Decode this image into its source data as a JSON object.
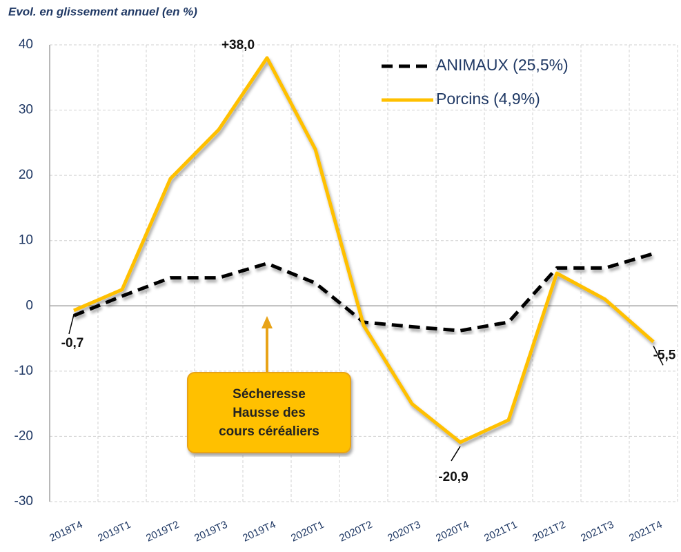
{
  "chart_data": {
    "type": "line",
    "subtitle": "Evol. en glissement annuel (en %)",
    "categories": [
      "2018T4",
      "2019T1",
      "2019T2",
      "2019T3",
      "2019T4",
      "2020T1",
      "2020T2",
      "2020T3",
      "2020T4",
      "2021T1",
      "2021T2",
      "2021T3",
      "2021T4"
    ],
    "series": [
      {
        "name": "ANIMAUX (25,5%)",
        "color": "#000000",
        "dash": true,
        "values": [
          -1.5,
          1.5,
          4.3,
          4.3,
          6.5,
          3.5,
          -2.5,
          -3.2,
          -3.8,
          -2.5,
          5.8,
          5.8,
          8.0
        ]
      },
      {
        "name": "Porcins (4,9%)",
        "color": "#FFC000",
        "dash": false,
        "values": [
          -0.7,
          2.5,
          19.5,
          27,
          38.0,
          24,
          -3,
          -15,
          -20.9,
          -17.5,
          5,
          1,
          -5.5
        ],
        "value_labels": [
          "-0,7",
          null,
          null,
          null,
          "+38,0",
          null,
          null,
          null,
          "-20,9",
          null,
          null,
          null,
          "-5,5"
        ]
      }
    ],
    "ylim": [
      -30,
      40
    ],
    "yticks": [
      -30,
      -20,
      -10,
      0,
      10,
      20,
      30,
      40
    ],
    "grid": true,
    "legend": "upper right",
    "annotation": [
      "Sécheresse",
      "Hausse des",
      "cours céréaliers"
    ]
  }
}
